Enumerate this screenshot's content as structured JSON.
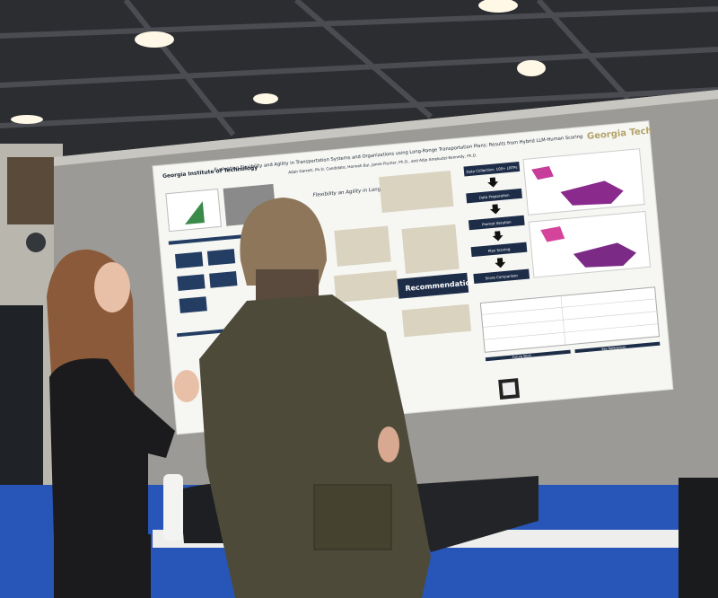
{
  "poster": {
    "logo": "Georgia Tech",
    "institute": "Georgia Institute of Technology",
    "title": "Evaluating Flexibility and Agility in Transportation Systems and Organizations using Long-Range Transportation Plans: Results from Hybrid LLM-Human Scoring",
    "authors": "Adair Garrett, Ph.D. Candidate, Hannah Bui, Jamie Fischer, Ph.D., and Adjo Amekudzi-Kennedy, Ph.D.",
    "section": "Flexibility an Agility in Long-Range Transportation Plans",
    "recommendations": "Recommendations",
    "methods": [
      "Data Collection: 100+ LRTPs",
      "Data Preparation",
      "Prompt Iteration",
      "Plan Scoring",
      "Score Comparison"
    ],
    "headings": [
      "Future Work",
      "Key References"
    ]
  }
}
